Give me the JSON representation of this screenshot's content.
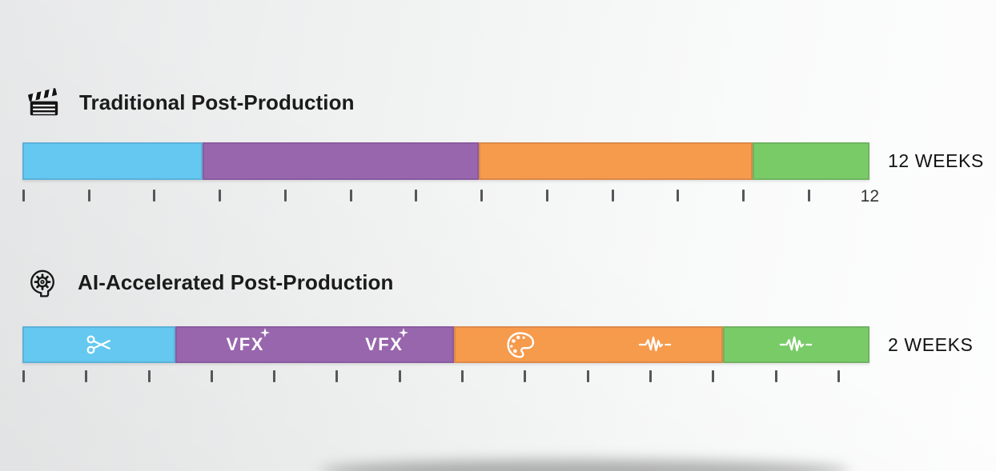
{
  "labels": {
    "vfx": "VFX"
  },
  "sections": [
    {
      "title": "Traditional Post-Production",
      "icon": "clapperboard-icon"
    },
    {
      "title": "AI-Accelerated Post-Production",
      "icon": "ai-brain-gear-icon"
    }
  ],
  "colors": {
    "blue": "#64C8F0",
    "purple": "#9866AD",
    "orange": "#F69A4C",
    "green": "#79CB68",
    "text": "#1b1b1b",
    "tick": "#56565a"
  },
  "chart_data": {
    "type": "bar",
    "subtype": "horizontal-stacked-timeline-comparison",
    "title": "Traditional vs AI-Accelerated Post-Production timeline",
    "bars": [
      {
        "label": "Traditional Post-Production",
        "duration_label": "12 WEEKS",
        "total_weeks": 12,
        "ruler_ticks": 13,
        "axis_end_tick_label": "12",
        "segments": [
          {
            "color": "#64C8F0",
            "fraction": 0.213,
            "icons": []
          },
          {
            "color": "#9866AD",
            "fraction": 0.326,
            "icons": []
          },
          {
            "color": "#F69A4C",
            "fraction": 0.323,
            "icons": []
          },
          {
            "color": "#79CB68",
            "fraction": 0.138,
            "icons": []
          }
        ]
      },
      {
        "label": "AI-Accelerated Post-Production",
        "duration_label": "2 WEEKS",
        "total_weeks": 2,
        "ruler_ticks": 14,
        "axis_end_tick_label": "",
        "segments": [
          {
            "color": "#64C8F0",
            "fraction": 0.181,
            "icons": [
              "scissors"
            ]
          },
          {
            "color": "#9866AD",
            "fraction": 0.328,
            "icons": [
              "vfx",
              "vfx"
            ]
          },
          {
            "color": "#F69A4C",
            "fraction": 0.318,
            "icons": [
              "palette",
              "waveform"
            ]
          },
          {
            "color": "#79CB68",
            "fraction": 0.173,
            "icons": [
              "waveform"
            ]
          }
        ]
      }
    ]
  }
}
